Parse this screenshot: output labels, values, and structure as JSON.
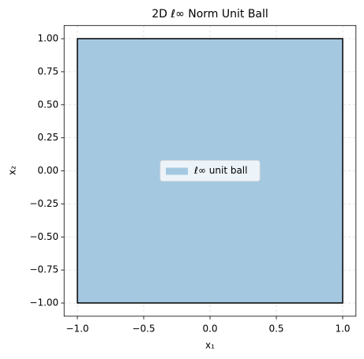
{
  "chart_data": {
    "type": "polygon",
    "title": "2D ℓ∞ Norm Unit Ball",
    "x_label": "x₁",
    "y_label": "x₂",
    "series": [
      {
        "name": "ℓ∞ unit ball",
        "color": "#a5c8e1",
        "edgecolor": "#000000",
        "x": [
          -1,
          1,
          1,
          -1,
          -1
        ],
        "values": [
          -1,
          -1,
          1,
          1,
          -1
        ]
      }
    ],
    "xlim": [
      -1.1,
      1.1
    ],
    "ylim": [
      -1.1,
      1.1
    ],
    "xticks": [
      {
        "value": -1,
        "label": "−1.0"
      },
      {
        "value": -0.5,
        "label": "−0.5"
      },
      {
        "value": 0,
        "label": "0.0"
      },
      {
        "value": 0.5,
        "label": "0.5"
      },
      {
        "value": 1,
        "label": "1.0"
      }
    ],
    "yticks": [
      {
        "value": -1,
        "label": "−1.00"
      },
      {
        "value": -0.75,
        "label": "−0.75"
      },
      {
        "value": -0.5,
        "label": "−0.50"
      },
      {
        "value": -0.25,
        "label": "−0.25"
      },
      {
        "value": 0,
        "label": "0.00"
      },
      {
        "value": 0.25,
        "label": "0.25"
      },
      {
        "value": 0.5,
        "label": "0.50"
      },
      {
        "value": 0.75,
        "label": "0.75"
      },
      {
        "value": 1,
        "label": "1.00"
      }
    ],
    "grid": true,
    "legend": "center"
  }
}
